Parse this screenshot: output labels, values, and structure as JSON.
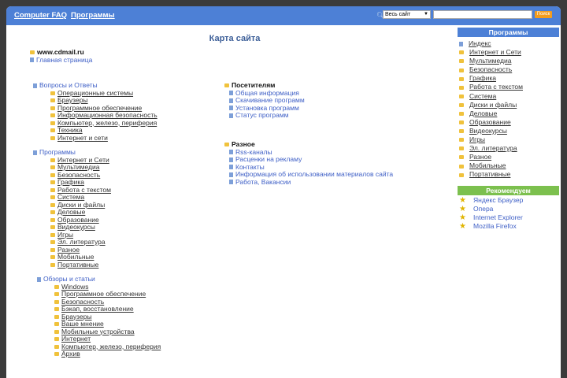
{
  "header": {
    "links": [
      "Computer FAQ",
      "Программы"
    ],
    "search_scope": "Весь сайт",
    "search_value": "",
    "search_button": "Поиск"
  },
  "page_title": "Карта сайта",
  "site": {
    "name": "www.cdmail.ru",
    "home": "Главная страница"
  },
  "left_sections": [
    {
      "title": "Вопросы и Ответы",
      "items": [
        "Операционные системы",
        "Браузеры",
        "Программное обеспечение",
        "Информационная безопасность",
        "Компьютер, железо, периферия",
        "Техника",
        "Интернет и сети"
      ]
    },
    {
      "title": "Программы",
      "items": [
        "Интернет и Сети",
        "Мультимедиа",
        "Безопасность",
        "Графика",
        "Работа с текстом",
        "Система",
        "Диски и файлы",
        "Деловые",
        "Образование",
        "Видеокурсы",
        "Игры",
        "Эл. литература",
        "Разное",
        "Мобильные",
        "Портативные"
      ]
    },
    {
      "title": "Обзоры и статьи",
      "items": [
        "Windows",
        "Программное обеспечение",
        "Безопасность",
        "Бэкап, восстановление",
        "Браузеры",
        "Ваше мнение",
        "Мобильные устройства",
        "Интернет",
        "Компьютер, железо, периферия",
        "Архив"
      ]
    }
  ],
  "mid_sections": [
    {
      "title": "Посетителям",
      "items": [
        "Общая информация",
        "Скачивание программ",
        "Установка программ",
        "Статус программ"
      ]
    },
    {
      "title": "Разное",
      "items": [
        "Rss-каналы",
        "Расценки на рекламу",
        "Контакты",
        "Информация об использовании материалов сайта",
        "Работа, Вакансии"
      ]
    }
  ],
  "sidebar": {
    "programs_title": "Программы",
    "programs": [
      "Индекс",
      "Интернет и Сети",
      "Мультимедиа",
      "Безопасность",
      "Графика",
      "Работа с текстом",
      "Система",
      "Диски и файлы",
      "Деловые",
      "Образование",
      "Видеокурсы",
      "Игры",
      "Эл. литература",
      "Разное",
      "Мобильные",
      "Портативные"
    ],
    "recommend_title": "Рекомендуем",
    "recommend": [
      "Яндекс Браузер",
      "Опера",
      "Internet Explorer",
      "Mozilla Firefox"
    ]
  },
  "colors": {
    "header": "#4d80d6",
    "recommend": "#7cc04e",
    "accent_button": "#f39c1e"
  }
}
